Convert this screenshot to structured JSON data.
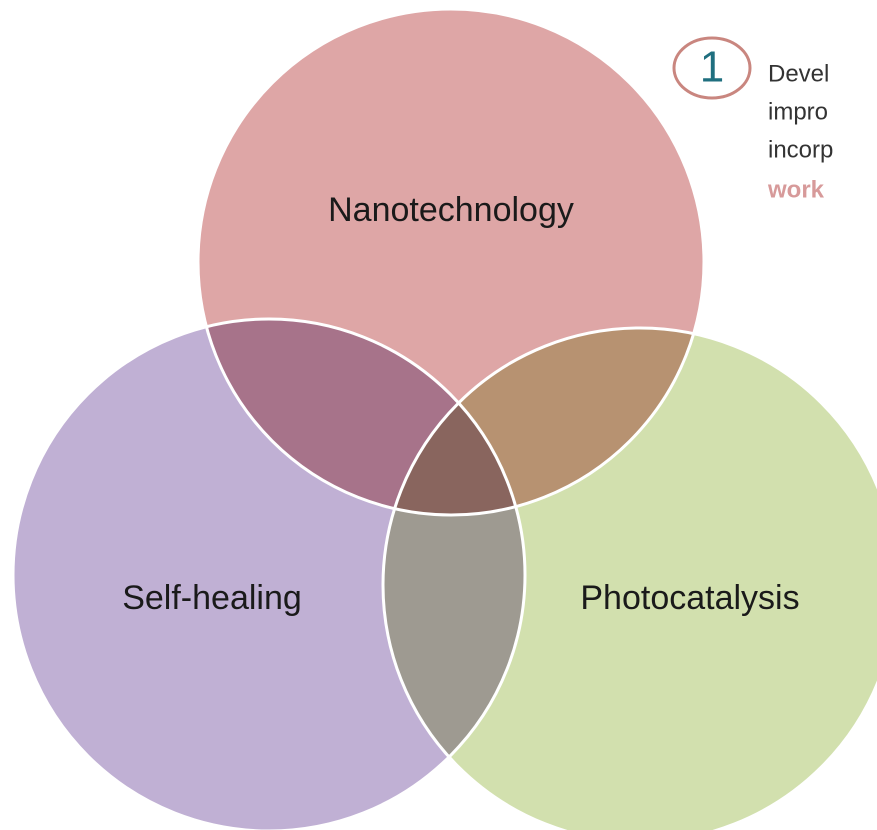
{
  "diagram": {
    "circles": [
      {
        "label": "Nanotechnology"
      },
      {
        "label": "Self-healing"
      },
      {
        "label": "Photocatalysis"
      }
    ],
    "note": {
      "number": "1",
      "lines": [
        "Devel",
        "impro",
        "incorp"
      ],
      "emphasis": "work"
    }
  }
}
